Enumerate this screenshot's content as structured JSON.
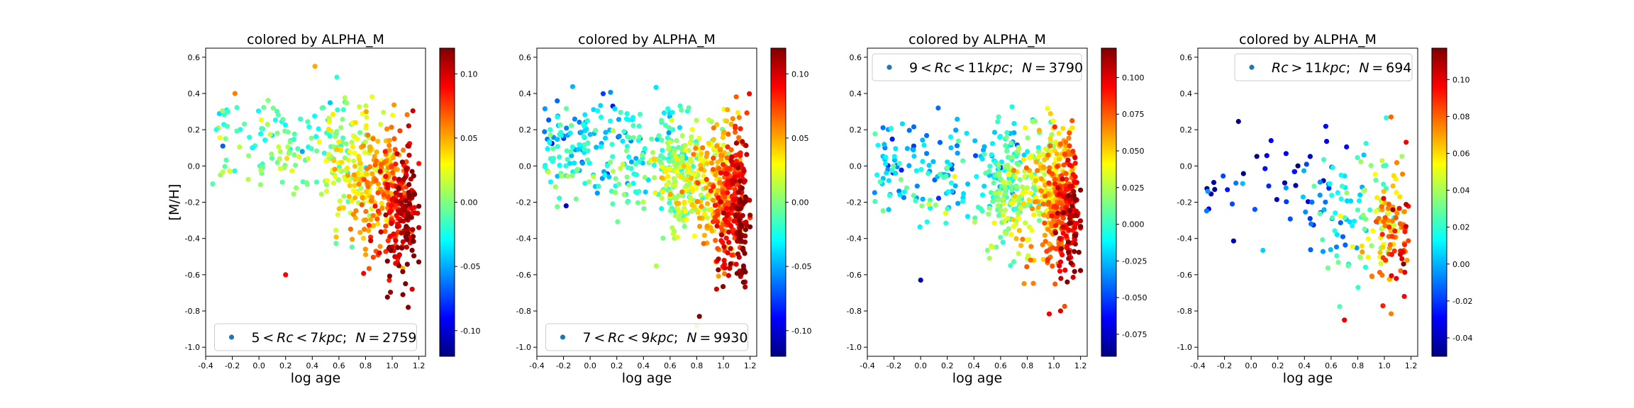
{
  "chart_data": [
    {
      "type": "scatter",
      "title": "colored by ALPHA_M",
      "xlabel": "log age",
      "ylabel": "[M/H]",
      "xlim": [
        -0.4,
        1.25
      ],
      "ylim": [
        -1.05,
        0.65
      ],
      "xticks": [
        "-0.4",
        "-0.2",
        "0.0",
        "0.2",
        "0.4",
        "0.6",
        "0.8",
        "1.0",
        "1.2"
      ],
      "yticks": [
        "-1.0",
        "-0.8",
        "-0.6",
        "-0.4",
        "-0.2",
        "0.0",
        "0.2",
        "0.4",
        "0.6"
      ],
      "legend": {
        "label_math": true,
        "text": "5<Rc<7kpc;  N=2759",
        "location": "lower-center"
      },
      "N": 2759,
      "colorbar": {
        "colormap": "jet",
        "range": [
          -0.12,
          0.12
        ],
        "ticks": [
          "-0.10",
          "-0.05",
          "0.00",
          "0.05",
          "0.10"
        ]
      },
      "colormap_colors": [
        "#00007f",
        "#0000ff",
        "#007fff",
        "#00ffff",
        "#7fff7f",
        "#ffff00",
        "#ff7f00",
        "#ff0000",
        "#7f0000"
      ],
      "trend_summary": {
        "x_range": [
          -0.35,
          1.2
        ],
        "y_center_young": 0.15,
        "y_center_old": -0.25,
        "alpha_young": -0.01,
        "alpha_old": 0.12
      },
      "series": [
        {
          "x": [
            1.05,
            1.1,
            1.12,
            1.08,
            1.15,
            1.02
          ],
          "y": [
            -0.55,
            -0.65,
            -0.78,
            -0.71,
            -0.68,
            -0.5
          ],
          "alpha_m": [
            0.12,
            0.12,
            0.12,
            0.12,
            0.1,
            0.1
          ]
        },
        {
          "x": [
            -0.32,
            -0.25,
            -0.18,
            -0.05,
            0.2,
            0.3,
            0.42
          ],
          "y": [
            0.2,
            0.15,
            0.4,
            0.1,
            -0.6,
            0.05,
            0.55
          ],
          "alpha_m": [
            -0.02,
            0.0,
            0.06,
            -0.03,
            0.09,
            0.02,
            0.05
          ]
        }
      ]
    },
    {
      "type": "scatter",
      "title": "colored by ALPHA_M",
      "xlabel": "log age",
      "xlim": [
        -0.4,
        1.25
      ],
      "ylim": [
        -1.05,
        0.65
      ],
      "xticks": [
        "-0.4",
        "-0.2",
        "0.0",
        "0.2",
        "0.4",
        "0.6",
        "0.8",
        "1.0",
        "1.2"
      ],
      "yticks": [
        "-1.0",
        "-0.8",
        "-0.6",
        "-0.4",
        "-0.2",
        "0.0",
        "0.2",
        "0.4",
        "0.6"
      ],
      "legend": {
        "label_math": true,
        "text": "7<Rc<9kpc;  N=9930",
        "location": "lower-center"
      },
      "N": 9930,
      "colorbar": {
        "colormap": "jet",
        "range": [
          -0.12,
          0.12
        ],
        "ticks": [
          "-0.10",
          "-0.05",
          "0.00",
          "0.05",
          "0.10"
        ]
      },
      "trend_summary": {
        "x_range": [
          -0.35,
          1.2
        ],
        "y_center_young": 0.1,
        "y_center_old": -0.25,
        "alpha_young": -0.03,
        "alpha_old": 0.12
      },
      "series": [
        {
          "x": [
            0.82,
            -0.18,
            -0.3
          ],
          "y": [
            -0.83,
            -0.22,
            0.2
          ],
          "alpha_m": [
            0.12,
            -0.1,
            -0.02
          ]
        }
      ]
    },
    {
      "type": "scatter",
      "title": "colored by ALPHA_M",
      "xlabel": "log age",
      "xlim": [
        -0.4,
        1.25
      ],
      "ylim": [
        -1.05,
        0.65
      ],
      "xticks": [
        "-0.4",
        "-0.2",
        "0.0",
        "0.2",
        "0.4",
        "0.6",
        "0.8",
        "1.0",
        "1.2"
      ],
      "yticks": [
        "-1.0",
        "-0.8",
        "-0.6",
        "-0.4",
        "-0.2",
        "0.0",
        "0.2",
        "0.4",
        "0.6"
      ],
      "legend": {
        "label_math": true,
        "text": "9<Rc<11kpc;  N=3790",
        "location": "upper-right"
      },
      "N": 3790,
      "colorbar": {
        "colormap": "jet",
        "range": [
          -0.09,
          0.12
        ],
        "ticks": [
          "-0.075",
          "-0.050",
          "-0.025",
          "0.000",
          "0.025",
          "0.050",
          "0.075",
          "0.100"
        ]
      },
      "trend_summary": {
        "x_range": [
          -0.35,
          1.2
        ],
        "y_center_young": 0.0,
        "y_center_old": -0.25,
        "alpha_young": -0.02,
        "alpha_old": 0.11
      },
      "series": [
        {
          "x": [
            0.0,
            1.05
          ],
          "y": [
            -0.63,
            -0.8
          ],
          "alpha_m": [
            -0.08,
            0.1
          ]
        }
      ]
    },
    {
      "type": "scatter",
      "title": "colored by ALPHA_M",
      "xlabel": "log age",
      "xlim": [
        -0.4,
        1.25
      ],
      "ylim": [
        -1.05,
        0.65
      ],
      "xticks": [
        "-0.4",
        "-0.2",
        "0.0",
        "0.2",
        "0.4",
        "0.6",
        "0.8",
        "1.0",
        "1.2"
      ],
      "yticks": [
        "-1.0",
        "-0.8",
        "-0.6",
        "-0.4",
        "-0.2",
        "0.0",
        "0.2",
        "0.4",
        "0.6"
      ],
      "legend": {
        "label_math": true,
        "text": "Rc>11kpc;  N=694",
        "location": "upper-right"
      },
      "N": 694,
      "colorbar": {
        "colormap": "jet",
        "range": [
          -0.05,
          0.117
        ],
        "ticks": [
          "-0.04",
          "-0.02",
          "0.00",
          "0.02",
          "0.04",
          "0.06",
          "0.08",
          "0.10"
        ]
      },
      "trend_summary": {
        "x_range": [
          -0.35,
          1.18
        ],
        "y_center_young": -0.12,
        "y_center_old": -0.38,
        "alpha_young": -0.02,
        "alpha_old": 0.1
      },
      "series": [
        {
          "x": [
            0.7,
            1.05,
            0.15
          ],
          "y": [
            -0.85,
            0.27,
            0.14
          ],
          "alpha_m": [
            0.1,
            0.08,
            -0.03
          ]
        }
      ]
    }
  ]
}
